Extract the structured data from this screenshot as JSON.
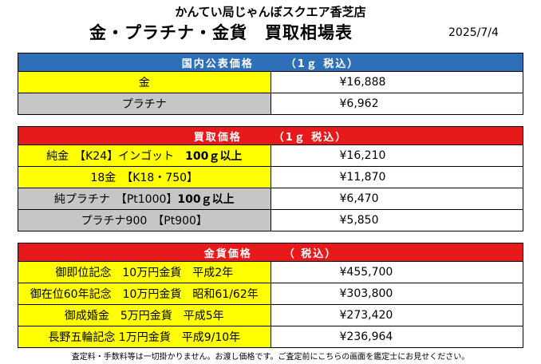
{
  "store_name": "かんてい局じゃんぼスクエア香芝店",
  "title": "金・プラチナ・金貨　買取相場表",
  "date": "2025/7/4",
  "public": {
    "header_main": "国内公表価格",
    "header_sub": "（1ｇ 税込）",
    "rows": [
      {
        "label": "金",
        "price": "¥16,888"
      },
      {
        "label": "プラチナ",
        "price": "¥6,962"
      }
    ]
  },
  "buy": {
    "header_main": "買取価格",
    "header_sub": "（1ｇ 税込）",
    "rows": [
      {
        "label": "純金　【K24】インゴット　",
        "bold": "100ｇ以上",
        "price": "¥16,210"
      },
      {
        "label": "18金　【K18・750】",
        "bold": "",
        "price": "¥11,870"
      },
      {
        "label": "純プラチナ　【Pt1000】",
        "bold": "100ｇ以上",
        "price": "¥6,470"
      },
      {
        "label": "プラチナ900　【Pt900】",
        "bold": "",
        "price": "¥5,850"
      }
    ]
  },
  "coins": {
    "header_main": "金貨価格",
    "header_sub": "（ 税込）",
    "rows": [
      {
        "label": "御即位記念　10万円金貨　平成2年",
        "price": "¥455,700"
      },
      {
        "label": "御在位60年記念　10万円金貨　昭和61/62年",
        "price": "¥303,800"
      },
      {
        "label": "御成婚金　5万円金貨　平成5年",
        "price": "¥273,420"
      },
      {
        "label": "長野五輪記念 1万円金貨　平成9/10年",
        "price": "¥236,964"
      }
    ]
  },
  "note": "査定料・手数料等は一切掛かりません。お渡し価格です。ご査定前にこちらの画面を鑑定士にお見せください。",
  "colors": {
    "public_header": "#2e6fba",
    "buy_header": "#e8191b",
    "highlight": "#ffff00",
    "platinum_gray": "#c6c6c6"
  }
}
